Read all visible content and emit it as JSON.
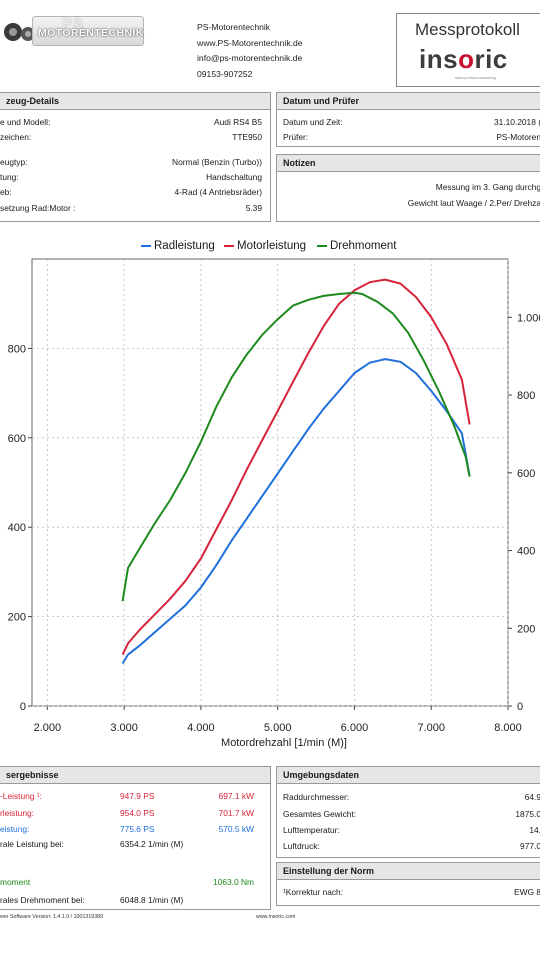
{
  "header": {
    "logo_text": "MOTORENTECHNIK",
    "logo_ps": "PS",
    "company_lines": [
      "PS-Motorentechnik",
      "www.PS-Motorentechnik.de",
      "info@ps-motorentechnik.de",
      "09153-907252"
    ],
    "protocol_title": "Messprotokoll",
    "brand_pre": "ins",
    "brand_o": "o",
    "brand_post": "ric",
    "brand_tagline": "swiss precision measuring"
  },
  "vehicle": {
    "title": "zeug-Details",
    "rows": [
      {
        "label": "e und Modell:",
        "value": "Audi RS4 B5"
      },
      {
        "label": "zeichen:",
        "value": "TTE950"
      },
      {
        "label": "eugtyp:",
        "value": "Normal (Benzin (Turbo))"
      },
      {
        "label": "tung:",
        "value": "Handschaltung"
      },
      {
        "label": "eb:",
        "value": "4-Rad (4 Antriebsräder)"
      },
      {
        "label": "setzung Rad:Motor :",
        "value": "5.39"
      }
    ]
  },
  "date": {
    "title": "Datum und Prüfer",
    "rows": [
      {
        "label": "Datum und Zeit:",
        "value": "31.10.2018 ("
      },
      {
        "label": "Prüfer:",
        "value": "PS-Motoren"
      }
    ]
  },
  "notes": {
    "title": "Notizen",
    "lines": [
      "Messung im 3. Gang durchg",
      "Gewicht laut Waage / 2.Per/ Drehza"
    ]
  },
  "results": {
    "title": "sergebnisse",
    "rows": [
      {
        "label": "-Leistung ¹:",
        "v1": "947.9 PS",
        "v2": "697.1 kW",
        "color": "#d6243a"
      },
      {
        "label": "rleistung:",
        "v1": "954.0 PS",
        "v2": "701.7 kW",
        "color": "#d6243a"
      },
      {
        "label": "eistung:",
        "v1": "775.6 PS",
        "v2": "570.5 kW",
        "color": "#1f6fdc"
      },
      {
        "label": "rale Leistung bei:",
        "v1": "6354.2 1/min (M)",
        "v2": "",
        "color": "#1a1a1a"
      },
      {
        "label": "moment",
        "v1": "",
        "v2": "1063.0 Nm",
        "color": "#1e8a1e"
      },
      {
        "label": "rales Drehmoment bei:",
        "v1": "6048.8 1/min (M)",
        "v2": "",
        "color": "#1a1a1a"
      }
    ]
  },
  "environment": {
    "title": "Umgebungsdaten",
    "rows": [
      {
        "label": "Raddurchmesser:",
        "value": "64.9"
      },
      {
        "label": "Gesamtes Gewicht:",
        "value": "1875.0"
      },
      {
        "label": "Lufttemperatur:",
        "value": "14."
      },
      {
        "label": "Luftdruck:",
        "value": "977.0"
      }
    ]
  },
  "norm": {
    "title": "Einstellung der Norm",
    "label": "¹Korrektur nach:",
    "value": "EWG 8"
  },
  "footer": {
    "left": "wer Software Version: 1.4.1.0 / 1001319389",
    "right": "www.insoric.com"
  },
  "colors": {
    "radleistung": "#1f6fdc",
    "motorleistung": "#d6243a",
    "drehmoment": "#1e8a1e"
  },
  "chart_data": {
    "type": "line",
    "title": "",
    "xlabel": "Motordrehzahl [1/min (M)]",
    "ylabel": "",
    "xlim": [
      1800,
      8000
    ],
    "ylim_left": [
      0,
      1000
    ],
    "ylim_right": [
      0,
      1150
    ],
    "x_ticks": [
      2000,
      3000,
      4000,
      5000,
      6000,
      7000,
      8000
    ],
    "x_tick_labels": [
      "2.000",
      "3.000",
      "4.000",
      "5.000",
      "6.000",
      "7.000",
      "8.000"
    ],
    "y_left_ticks": [
      0,
      200,
      400,
      600,
      800
    ],
    "y_left_tick_labels": [
      "0",
      "200",
      "400",
      "600",
      "800"
    ],
    "y_right_ticks": [
      0,
      200,
      400,
      600,
      800,
      1000
    ],
    "y_right_tick_labels": [
      "0",
      "200",
      "400",
      "600",
      "800",
      "1.000"
    ],
    "grid": true,
    "legend_position": "top-center",
    "series": [
      {
        "name": "Radleistung",
        "axis": "left",
        "x": [
          2980,
          3050,
          3200,
          3400,
          3600,
          3800,
          4000,
          4200,
          4400,
          4600,
          4800,
          5000,
          5200,
          5400,
          5600,
          5800,
          6000,
          6200,
          6400,
          6600,
          6800,
          7000,
          7200,
          7400,
          7500
        ],
        "values": [
          95,
          115,
          135,
          165,
          195,
          225,
          265,
          315,
          370,
          420,
          470,
          520,
          570,
          620,
          665,
          705,
          745,
          768,
          776,
          770,
          745,
          705,
          660,
          610,
          515
        ]
      },
      {
        "name": "Motorleistung",
        "axis": "left",
        "x": [
          2980,
          3050,
          3200,
          3400,
          3600,
          3800,
          4000,
          4200,
          4400,
          4600,
          4800,
          5000,
          5200,
          5400,
          5600,
          5800,
          6000,
          6200,
          6400,
          6600,
          6800,
          7000,
          7200,
          7400,
          7500
        ],
        "values": [
          115,
          140,
          170,
          205,
          240,
          280,
          330,
          395,
          460,
          530,
          595,
          660,
          725,
          790,
          850,
          900,
          930,
          948,
          954,
          945,
          915,
          870,
          810,
          730,
          630
        ]
      },
      {
        "name": "Drehmoment",
        "axis": "right",
        "x": [
          2980,
          3050,
          3200,
          3400,
          3600,
          3800,
          4000,
          4200,
          4400,
          4600,
          4800,
          5000,
          5200,
          5400,
          5600,
          5800,
          6000,
          6100,
          6300,
          6500,
          6700,
          6900,
          7100,
          7300,
          7450,
          7500
        ],
        "values": [
          270,
          355,
          405,
          470,
          530,
          600,
          680,
          770,
          845,
          905,
          955,
          995,
          1030,
          1045,
          1055,
          1060,
          1063,
          1060,
          1040,
          1010,
          960,
          890,
          810,
          720,
          640,
          590
        ]
      }
    ]
  }
}
